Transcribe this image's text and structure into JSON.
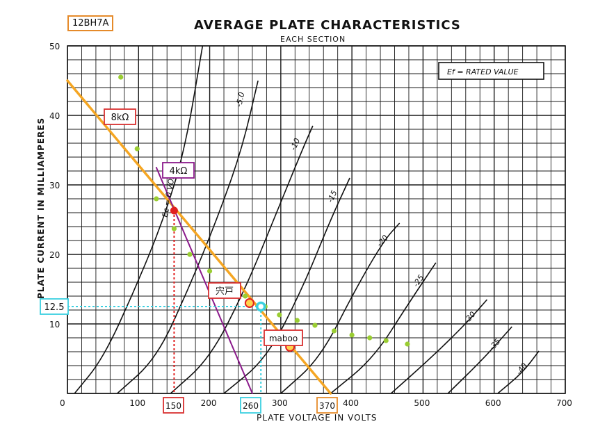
{
  "header": {
    "tube_label": "12BH7A",
    "title": "AVERAGE PLATE CHARACTERISTICS",
    "subtitle": "EACH SECTION",
    "ef_note": "Ef = RATED VALUE"
  },
  "colors": {
    "grid": "#1a1a1a",
    "curve": "#111111",
    "load_8k": "#f5a623",
    "load_4k": "#8b1a8b",
    "op_point": "#e02020",
    "dots": "#9acd32",
    "cyan": "#3ad0e0",
    "box_red": "#d93030",
    "box_orange": "#e58a2a",
    "box_purple": "#8b1a8b"
  },
  "chart_data": {
    "type": "line",
    "title": "AVERAGE PLATE CHARACTERISTICS",
    "subtitle": "EACH SECTION",
    "xlabel": "PLATE VOLTAGE IN VOLTS",
    "ylabel": "PLATE CURRENT IN MILLIAMPERES",
    "xlim": [
      0,
      700
    ],
    "ylim": [
      0,
      50
    ],
    "x_ticks": [
      "0",
      "100",
      "200",
      "300",
      "400",
      "500",
      "600",
      "700"
    ],
    "y_ticks": [
      "10",
      "20",
      "30",
      "40",
      "50"
    ],
    "grid": true,
    "curves": [
      {
        "name": "Ec = 0 VOLTS",
        "points": [
          [
            10,
            0
          ],
          [
            50,
            5
          ],
          [
            95,
            15
          ],
          [
            135,
            25
          ],
          [
            165,
            35
          ],
          [
            190,
            50
          ]
        ]
      },
      {
        "name": "-5.0",
        "points": [
          [
            70,
            0
          ],
          [
            125,
            5
          ],
          [
            170,
            15
          ],
          [
            210,
            25
          ],
          [
            245,
            35
          ],
          [
            268,
            45
          ]
        ]
      },
      {
        "name": "-10",
        "points": [
          [
            145,
            0
          ],
          [
            200,
            5
          ],
          [
            250,
            15
          ],
          [
            290,
            25
          ],
          [
            330,
            35
          ],
          [
            345,
            38.5
          ]
        ]
      },
      {
        "name": "-15",
        "points": [
          [
            220,
            0
          ],
          [
            280,
            5
          ],
          [
            330,
            15
          ],
          [
            370,
            25
          ],
          [
            397,
            31
          ]
        ]
      },
      {
        "name": "-20",
        "points": [
          [
            300,
            0
          ],
          [
            355,
            5
          ],
          [
            405,
            15
          ],
          [
            445,
            22
          ],
          [
            467,
            24.5
          ]
        ]
      },
      {
        "name": "-25",
        "points": [
          [
            370,
            0
          ],
          [
            430,
            5
          ],
          [
            480,
            13
          ],
          [
            518,
            18.8
          ]
        ]
      },
      {
        "name": "-30",
        "points": [
          [
            455,
            0
          ],
          [
            510,
            5
          ],
          [
            560,
            10
          ],
          [
            590,
            13.5
          ]
        ]
      },
      {
        "name": "-35",
        "points": [
          [
            535,
            0
          ],
          [
            585,
            5
          ],
          [
            625,
            9.6
          ]
        ]
      },
      {
        "name": "-40",
        "points": [
          [
            605,
            0
          ],
          [
            640,
            3
          ],
          [
            663,
            6.1
          ]
        ]
      }
    ],
    "load_lines": [
      {
        "name": "8kΩ",
        "points": [
          [
            0,
            45
          ],
          [
            370,
            0
          ]
        ]
      },
      {
        "name": "4kΩ",
        "points": [
          [
            125,
            32.5
          ],
          [
            260,
            0
          ]
        ]
      }
    ],
    "dots": [
      [
        75,
        45.5
      ],
      [
        98,
        35.2
      ],
      [
        125,
        28
      ],
      [
        150,
        23.7
      ],
      [
        172,
        20
      ],
      [
        200,
        17.6
      ],
      [
        250,
        14
      ],
      [
        278,
        12.5
      ],
      [
        298,
        11.3
      ],
      [
        323,
        10.5
      ],
      [
        348,
        9.8
      ],
      [
        375,
        9
      ],
      [
        400,
        8.4
      ],
      [
        425,
        8
      ],
      [
        448,
        7.6
      ],
      [
        478,
        7.1
      ]
    ],
    "operating_point": [
      150,
      26.3
    ],
    "marker_shishido": [
      256,
      13
    ],
    "marker_maboo": [
      313,
      6.7
    ],
    "cyan_point": [
      272,
      12.5
    ],
    "annotations": {
      "tube": "12BH7A",
      "r8k": "8kΩ",
      "r4k": "4kΩ",
      "shishido": "宍戸",
      "maboo": "maboo",
      "y125": "12.5",
      "x150": "150",
      "x260": "260",
      "x370": "370"
    }
  }
}
